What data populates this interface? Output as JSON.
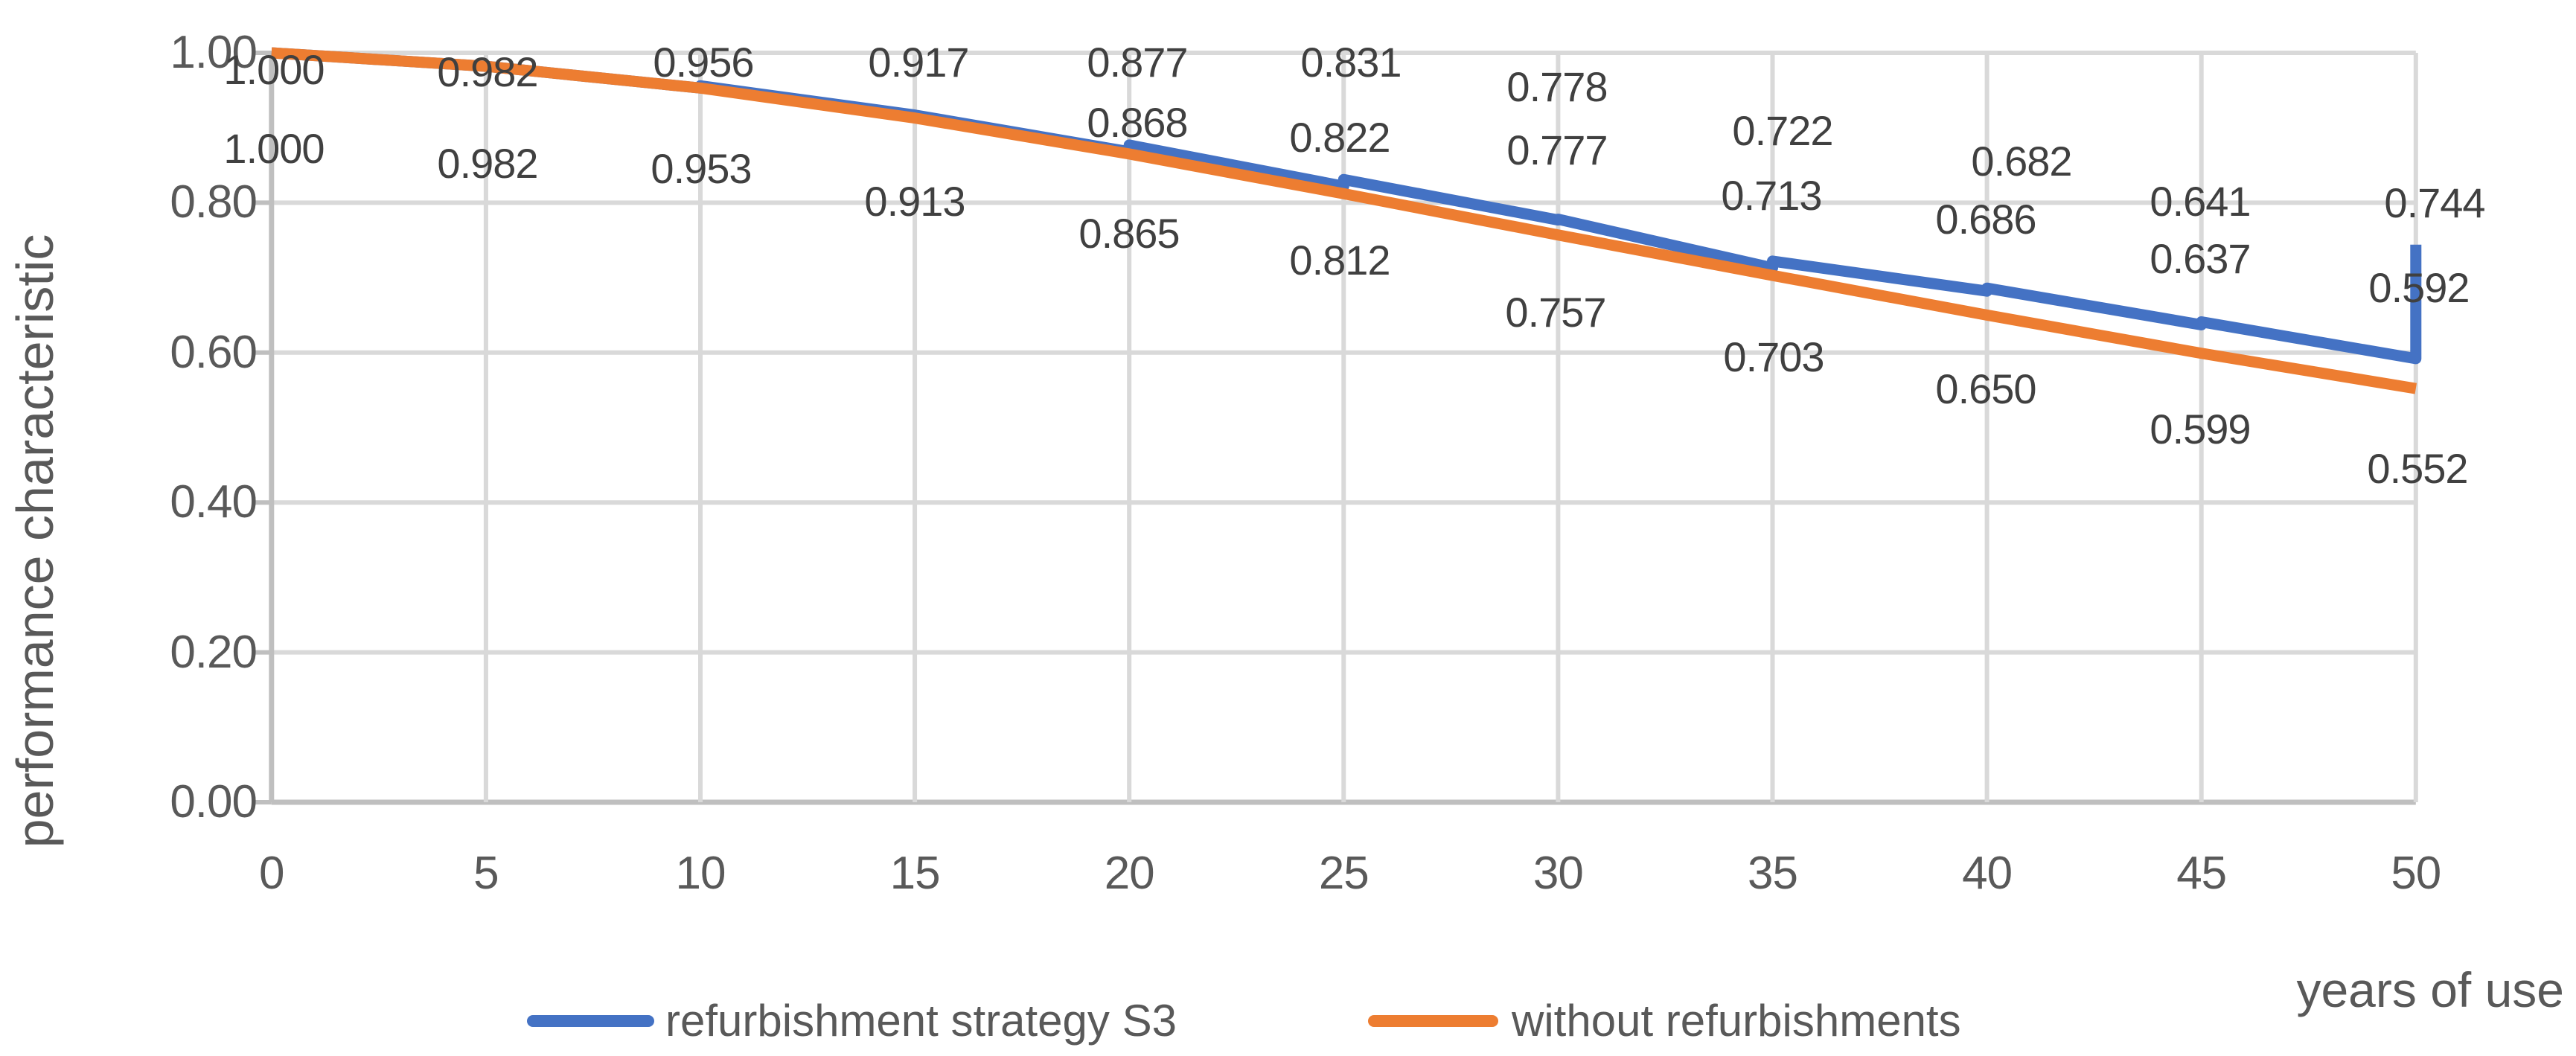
{
  "chart_data": {
    "type": "line",
    "title": "",
    "xlabel": "years of use",
    "ylabel": "performance characteristic",
    "xlim": [
      0,
      50
    ],
    "ylim": [
      0.0,
      1.0
    ],
    "x_ticks": [
      "0",
      "5",
      "10",
      "15",
      "20",
      "25",
      "30",
      "35",
      "40",
      "45",
      "50"
    ],
    "y_ticks": [
      "0.00",
      "0.20",
      "0.40",
      "0.60",
      "0.80",
      "1.00"
    ],
    "grid": true,
    "legend_position": "bottom",
    "series": [
      {
        "name": "refurbishment strategy S3",
        "color": "#4472C4",
        "points": [
          [
            0,
            1.0
          ],
          [
            5,
            0.982
          ],
          [
            10,
            0.953
          ],
          [
            10,
            0.956
          ],
          [
            15,
            0.917
          ],
          [
            20,
            0.868
          ],
          [
            20,
            0.877
          ],
          [
            25,
            0.822
          ],
          [
            25,
            0.831
          ],
          [
            30,
            0.777
          ],
          [
            30,
            0.778
          ],
          [
            35,
            0.713
          ],
          [
            35,
            0.722
          ],
          [
            40,
            0.682
          ],
          [
            40,
            0.686
          ],
          [
            45,
            0.637
          ],
          [
            45,
            0.641
          ],
          [
            50,
            0.592
          ],
          [
            50,
            0.744
          ]
        ]
      },
      {
        "name": "without refurbishments",
        "color": "#ED7D31",
        "points": [
          [
            0,
            1.0
          ],
          [
            5,
            0.982
          ],
          [
            10,
            0.953
          ],
          [
            15,
            0.913
          ],
          [
            20,
            0.865
          ],
          [
            25,
            0.812
          ],
          [
            30,
            0.757
          ],
          [
            35,
            0.703
          ],
          [
            40,
            0.65
          ],
          [
            45,
            0.599
          ],
          [
            50,
            0.552
          ]
        ]
      }
    ],
    "labels": {
      "s3_upper": [
        {
          "x": 0,
          "text": "1.000"
        },
        {
          "x": 5,
          "text": "0.982"
        },
        {
          "x": 10,
          "text": "0.956"
        },
        {
          "x": 15,
          "text": "0.917"
        },
        {
          "x": 20,
          "text": "0.877"
        },
        {
          "x": 25,
          "text": "0.831"
        },
        {
          "x": 30,
          "text": "0.778"
        },
        {
          "x": 35,
          "text": "0.722"
        },
        {
          "x": 40,
          "text": "0.682"
        },
        {
          "x": 45,
          "text": "0.641"
        },
        {
          "x": 50,
          "text": "0.744"
        }
      ],
      "s3_lower": [
        {
          "x": 20,
          "text": "0.868"
        },
        {
          "x": 25,
          "text": "0.822"
        },
        {
          "x": 30,
          "text": "0.777"
        },
        {
          "x": 35,
          "text": "0.713"
        },
        {
          "x": 40,
          "text": "0.686"
        },
        {
          "x": 45,
          "text": "0.637"
        },
        {
          "x": 50,
          "text": "0.592"
        }
      ],
      "without": [
        {
          "x": 0,
          "text": "1.000"
        },
        {
          "x": 5,
          "text": "0.982"
        },
        {
          "x": 10,
          "text": "0.953"
        },
        {
          "x": 15,
          "text": "0.913"
        },
        {
          "x": 20,
          "text": "0.865"
        },
        {
          "x": 25,
          "text": "0.812"
        },
        {
          "x": 30,
          "text": "0.757"
        },
        {
          "x": 35,
          "text": "0.703"
        },
        {
          "x": 40,
          "text": "0.650"
        },
        {
          "x": 45,
          "text": "0.599"
        },
        {
          "x": 50,
          "text": "0.552"
        }
      ]
    }
  },
  "colors": {
    "series_s3": "#4472C4",
    "series_without": "#ED7D31",
    "gridline": "#D9D9D9",
    "axis_line": "#BFBFBF",
    "axis_text": "#595959",
    "data_label_text": "#404040",
    "background": "#FFFFFF"
  }
}
